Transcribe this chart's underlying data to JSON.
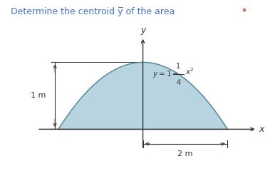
{
  "title_plain": "Determine the centroid y̅ of the area",
  "title_color": "#4472c4",
  "title_star": "*",
  "star_color": "#cc0000",
  "curve_label_parts": [
    "y = 1 – ",
    "1",
    "4",
    "x²"
  ],
  "fill_color": "#b8d4e0",
  "fill_alpha": 1.0,
  "curve_color": "#5a8a9a",
  "axis_color": "#333333",
  "dim_color": "#333333",
  "background_color": "#ffffff",
  "x_min": -2,
  "x_max": 2,
  "y_min": 0,
  "y_max": 1,
  "x_label": "x",
  "y_label": "y"
}
